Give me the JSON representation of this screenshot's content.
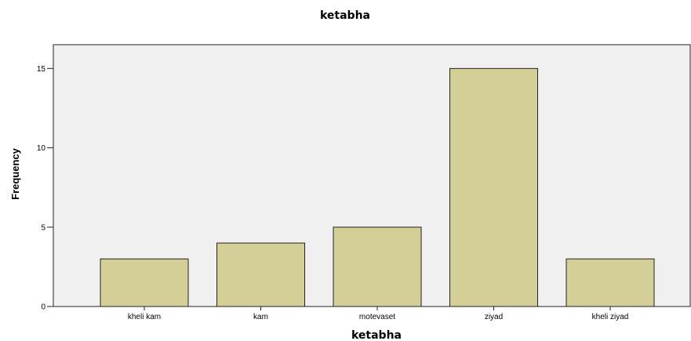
{
  "chart_data": {
    "type": "bar",
    "title": "ketabha",
    "xlabel": "ketabha",
    "ylabel": "Frequency",
    "categories": [
      "kheli kam",
      "kam",
      "motevaset",
      "ziyad",
      "kheli ziyad"
    ],
    "values": [
      3,
      4,
      5,
      15,
      3
    ],
    "ylim": [
      0,
      16.5
    ],
    "yticks": [
      0,
      5,
      10,
      15
    ],
    "grid": false,
    "colors": {
      "bar_fill": "#d4cf96",
      "bar_stroke": "#222222",
      "plot_background": "#f0f0f0",
      "axis": "#222222"
    }
  }
}
